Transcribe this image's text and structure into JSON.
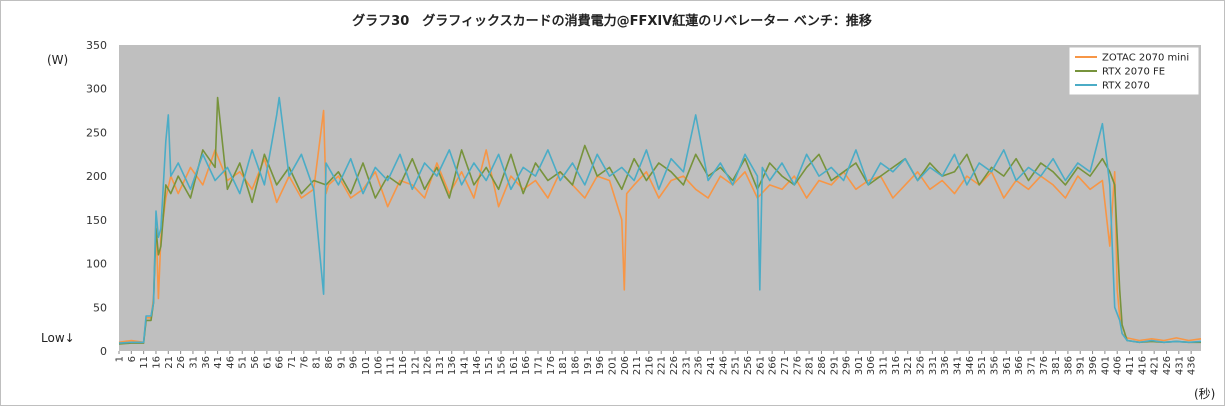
{
  "chart_data": {
    "type": "line",
    "title": "グラフ30　グラフィックスカードの消費電力@FFXIV紅蓮のリベレーター ベンチ：推移",
    "ylabel": "(W)",
    "xlabel": "(秒)",
    "annotation_low": "Low↓",
    "ylim": [
      0,
      350
    ],
    "yticks": [
      0,
      50,
      100,
      150,
      200,
      250,
      300,
      350
    ],
    "xlim": [
      1,
      440
    ],
    "xtick_start": 1,
    "xtick_step": 5,
    "xtick_end": 436,
    "legend_position": "top-right",
    "grid": "none",
    "plot_background": "#bfbfbf",
    "series": [
      {
        "name": "ZOTAC 2070 mini",
        "color": "#f79646",
        "x": [
          1,
          6,
          11,
          12,
          14,
          15,
          16,
          17,
          18,
          20,
          22,
          25,
          30,
          35,
          40,
          45,
          50,
          55,
          60,
          65,
          70,
          75,
          80,
          84,
          85,
          86,
          90,
          95,
          100,
          105,
          110,
          115,
          120,
          125,
          130,
          135,
          140,
          145,
          150,
          155,
          160,
          165,
          170,
          175,
          180,
          185,
          190,
          195,
          200,
          205,
          206,
          207,
          210,
          215,
          220,
          225,
          230,
          235,
          240,
          245,
          250,
          255,
          260,
          265,
          270,
          275,
          280,
          285,
          290,
          295,
          300,
          305,
          310,
          315,
          320,
          325,
          330,
          335,
          340,
          345,
          350,
          355,
          360,
          365,
          370,
          375,
          380,
          385,
          390,
          395,
          400,
          403,
          405,
          406,
          407,
          408,
          410,
          415,
          420,
          425,
          430,
          435,
          440
        ],
        "y": [
          10,
          12,
          10,
          38,
          38,
          60,
          150,
          60,
          130,
          175,
          200,
          180,
          210,
          190,
          230,
          195,
          205,
          185,
          220,
          170,
          200,
          175,
          185,
          275,
          180,
          190,
          200,
          175,
          185,
          205,
          165,
          195,
          190,
          175,
          215,
          180,
          205,
          175,
          230,
          165,
          200,
          185,
          195,
          175,
          205,
          190,
          175,
          200,
          195,
          150,
          70,
          180,
          190,
          205,
          175,
          195,
          200,
          185,
          175,
          200,
          190,
          205,
          175,
          190,
          185,
          200,
          175,
          195,
          190,
          205,
          185,
          195,
          200,
          175,
          190,
          205,
          185,
          195,
          180,
          200,
          190,
          205,
          175,
          195,
          185,
          200,
          190,
          175,
          200,
          185,
          195,
          120,
          205,
          70,
          40,
          20,
          15,
          12,
          14,
          12,
          15,
          12,
          14
        ]
      },
      {
        "name": "RTX 2070 FE",
        "color": "#77933c",
        "x": [
          1,
          6,
          11,
          12,
          14,
          15,
          16,
          17,
          18,
          20,
          22,
          25,
          30,
          35,
          40,
          41,
          45,
          50,
          55,
          60,
          65,
          70,
          75,
          80,
          85,
          90,
          95,
          100,
          105,
          110,
          115,
          120,
          125,
          130,
          135,
          140,
          145,
          150,
          155,
          160,
          165,
          170,
          175,
          180,
          185,
          190,
          195,
          200,
          205,
          210,
          215,
          220,
          225,
          230,
          235,
          240,
          245,
          250,
          255,
          260,
          265,
          270,
          275,
          280,
          285,
          290,
          295,
          300,
          305,
          310,
          315,
          320,
          325,
          330,
          335,
          340,
          345,
          350,
          355,
          360,
          365,
          370,
          375,
          380,
          385,
          390,
          395,
          400,
          403,
          405,
          407,
          408,
          410,
          415,
          420,
          425,
          430,
          435,
          440
        ],
        "y": [
          8,
          9,
          9,
          35,
          35,
          55,
          140,
          110,
          120,
          190,
          180,
          200,
          175,
          230,
          210,
          290,
          185,
          215,
          170,
          225,
          190,
          210,
          180,
          195,
          190,
          205,
          180,
          215,
          175,
          200,
          190,
          220,
          185,
          210,
          175,
          230,
          190,
          210,
          185,
          225,
          180,
          215,
          195,
          205,
          190,
          235,
          200,
          210,
          185,
          220,
          195,
          215,
          205,
          190,
          225,
          200,
          210,
          195,
          220,
          185,
          215,
          200,
          190,
          210,
          225,
          195,
          205,
          215,
          190,
          200,
          210,
          220,
          195,
          215,
          200,
          205,
          225,
          190,
          210,
          200,
          220,
          195,
          215,
          205,
          190,
          210,
          200,
          220,
          205,
          190,
          70,
          30,
          12,
          10,
          11,
          10,
          11,
          10,
          10
        ]
      },
      {
        "name": "RTX 2070",
        "color": "#4bacc6",
        "x": [
          1,
          6,
          11,
          12,
          14,
          15,
          16,
          17,
          18,
          20,
          21,
          22,
          25,
          30,
          35,
          40,
          45,
          50,
          55,
          60,
          65,
          66,
          70,
          75,
          80,
          84,
          85,
          90,
          95,
          100,
          105,
          110,
          115,
          120,
          125,
          130,
          135,
          140,
          145,
          150,
          155,
          160,
          165,
          170,
          175,
          180,
          185,
          190,
          195,
          200,
          205,
          210,
          215,
          220,
          225,
          230,
          235,
          240,
          245,
          250,
          255,
          260,
          261,
          262,
          265,
          270,
          275,
          280,
          285,
          290,
          295,
          300,
          305,
          310,
          315,
          320,
          325,
          330,
          335,
          340,
          345,
          350,
          355,
          360,
          365,
          370,
          375,
          380,
          385,
          390,
          395,
          400,
          403,
          405,
          407,
          408,
          410,
          415,
          420,
          425,
          430,
          435,
          440
        ],
        "y": [
          9,
          10,
          10,
          40,
          40,
          55,
          160,
          130,
          140,
          240,
          270,
          200,
          215,
          185,
          225,
          195,
          210,
          180,
          230,
          190,
          270,
          290,
          200,
          225,
          185,
          65,
          215,
          190,
          220,
          180,
          210,
          195,
          225,
          185,
          215,
          200,
          230,
          190,
          215,
          195,
          225,
          185,
          210,
          200,
          230,
          195,
          215,
          190,
          225,
          200,
          210,
          195,
          230,
          185,
          220,
          205,
          270,
          195,
          215,
          190,
          225,
          200,
          70,
          210,
          195,
          215,
          190,
          225,
          200,
          210,
          195,
          230,
          190,
          215,
          205,
          220,
          195,
          210,
          200,
          225,
          190,
          215,
          205,
          230,
          195,
          210,
          200,
          220,
          195,
          215,
          205,
          260,
          190,
          50,
          35,
          20,
          12,
          10,
          12,
          10,
          11,
          10,
          11
        ]
      }
    ]
  }
}
